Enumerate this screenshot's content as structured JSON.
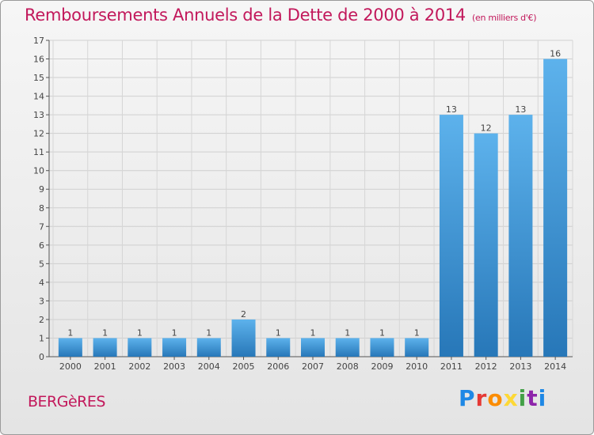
{
  "title": "Remboursements Annuels de la Dette de 2000 à 2014",
  "unit_note": "(en milliers d'€)",
  "town": "BERGèRES",
  "brand": [
    "P",
    "r",
    "o",
    "x",
    "i",
    "t",
    "i"
  ],
  "colors": {
    "bar_light": "#5aaee8",
    "bar_dark": "#2a7fc0",
    "title": "#c2185b",
    "axis": "#555555"
  },
  "chart_data": {
    "type": "bar",
    "categories": [
      "2000",
      "2001",
      "2002",
      "2003",
      "2004",
      "2005",
      "2006",
      "2007",
      "2008",
      "2009",
      "2010",
      "2011",
      "2012",
      "2013",
      "2014"
    ],
    "values": [
      1,
      1,
      1,
      1,
      1,
      2,
      1,
      1,
      1,
      1,
      1,
      13,
      12,
      13,
      16
    ],
    "ylim": [
      0,
      17
    ],
    "yticks": [
      0,
      1,
      2,
      3,
      4,
      5,
      6,
      7,
      8,
      9,
      10,
      11,
      12,
      13,
      14,
      15,
      16,
      17
    ],
    "grid": true,
    "title": "Remboursements Annuels de la Dette de 2000 à 2014",
    "xlabel": "",
    "ylabel": ""
  }
}
